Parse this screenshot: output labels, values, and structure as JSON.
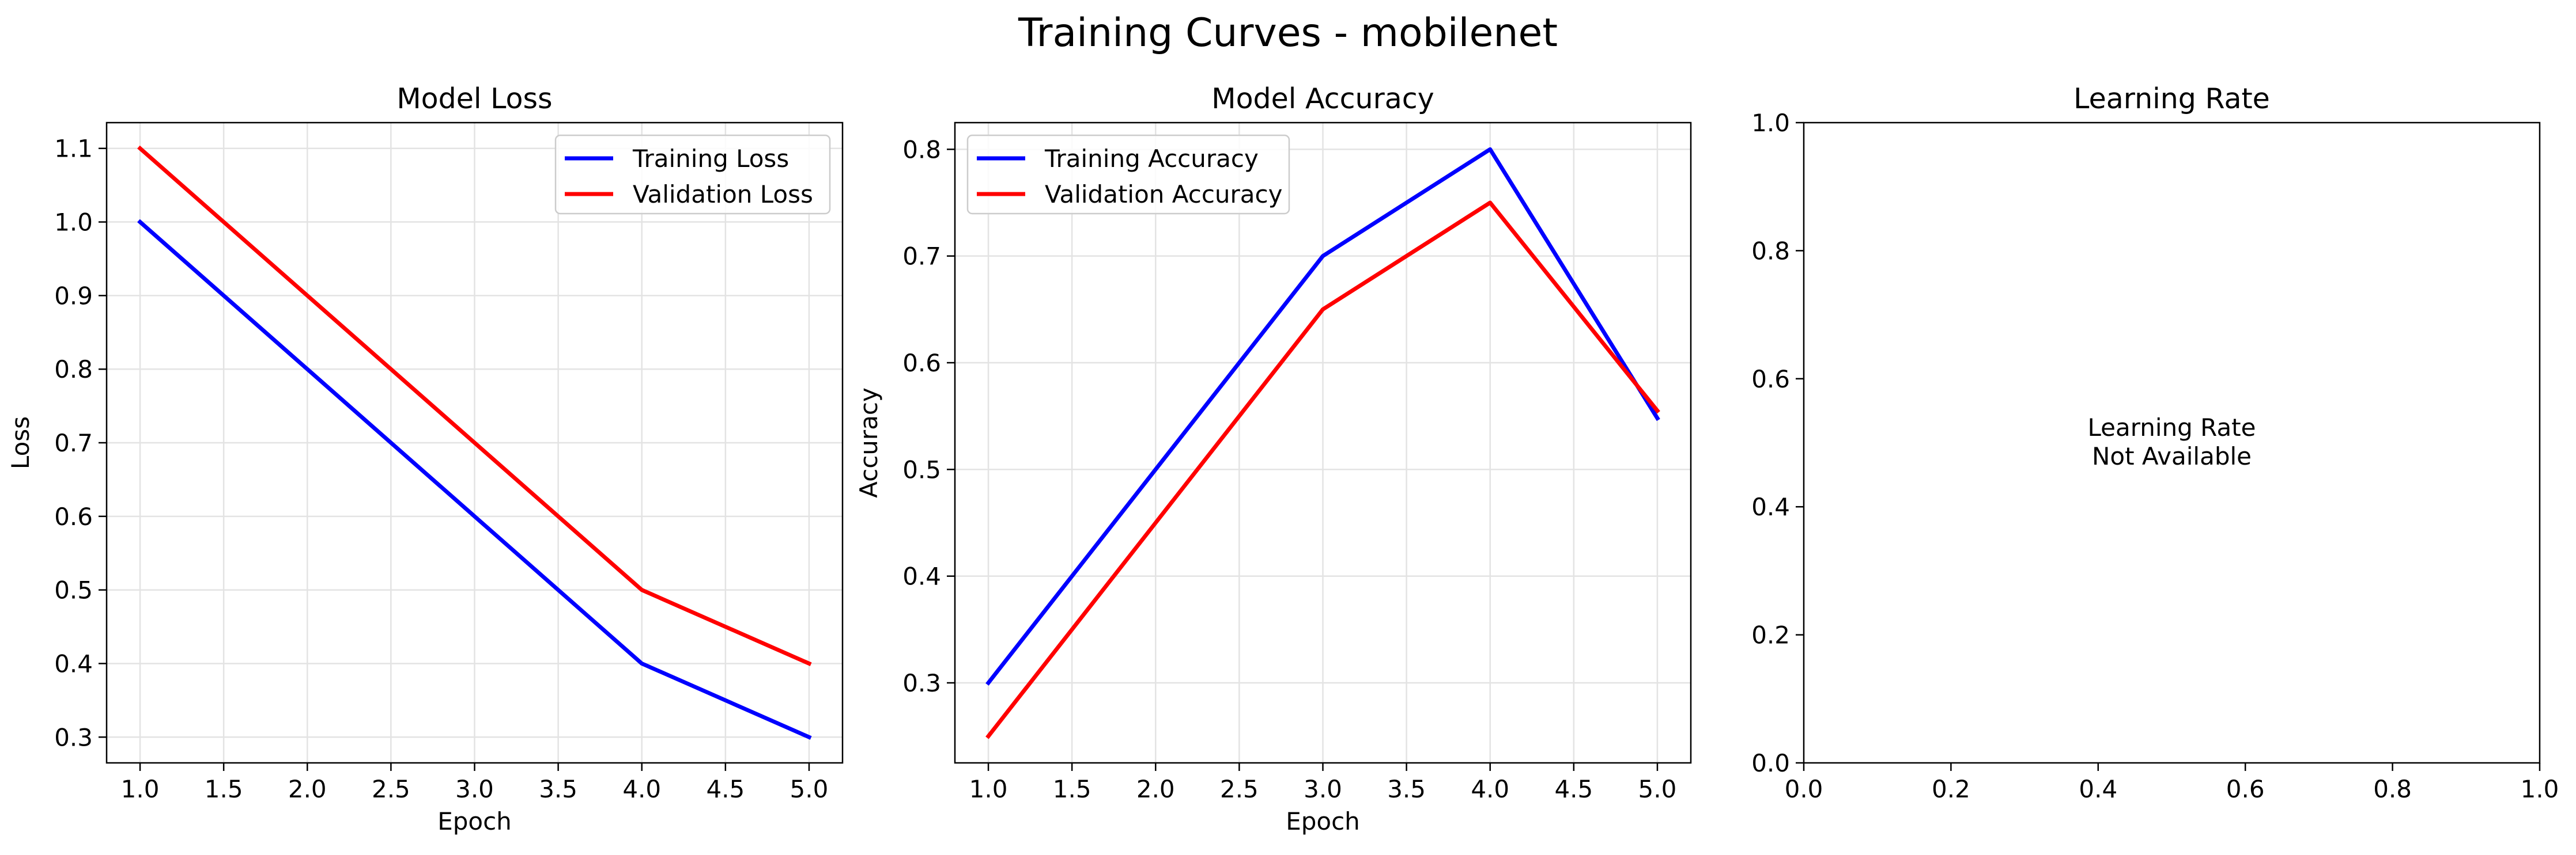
{
  "figure_title": "Training Curves - mobilenet",
  "colors": {
    "training": "#0000ff",
    "validation": "#ff0000",
    "grid": "#e3e3e3"
  },
  "chart_data": [
    {
      "type": "line",
      "title": "Model Loss",
      "xlabel": "Epoch",
      "ylabel": "Loss",
      "xlim": [
        0.8,
        5.2
      ],
      "ylim": [
        0.265,
        1.135
      ],
      "xticks": [
        1.0,
        1.5,
        2.0,
        2.5,
        3.0,
        3.5,
        4.0,
        4.5,
        5.0
      ],
      "yticks": [
        0.3,
        0.4,
        0.5,
        0.6,
        0.7,
        0.8,
        0.9,
        1.0,
        1.1
      ],
      "x": [
        1,
        2,
        3,
        4,
        5
      ],
      "series": [
        {
          "name": "Training Loss",
          "values": [
            1.0,
            0.8,
            0.6,
            0.4,
            0.3
          ]
        },
        {
          "name": "Validation Loss",
          "values": [
            1.1,
            0.9,
            0.7,
            0.5,
            0.4
          ]
        }
      ],
      "legend_loc": "upper right",
      "grid": true
    },
    {
      "type": "line",
      "title": "Model Accuracy",
      "xlabel": "Epoch",
      "ylabel": "Accuracy",
      "xlim": [
        0.8,
        5.2
      ],
      "ylim": [
        0.225,
        0.825
      ],
      "xticks": [
        1.0,
        1.5,
        2.0,
        2.5,
        3.0,
        3.5,
        4.0,
        4.5,
        5.0
      ],
      "yticks": [
        0.3,
        0.4,
        0.5,
        0.6,
        0.7,
        0.8
      ],
      "x": [
        1,
        2,
        3,
        4,
        5
      ],
      "series": [
        {
          "name": "Training Accuracy",
          "values": [
            0.3,
            0.5,
            0.7,
            0.8,
            0.548
          ]
        },
        {
          "name": "Validation Accuracy",
          "values": [
            0.25,
            0.45,
            0.65,
            0.75,
            0.555
          ]
        }
      ],
      "legend_loc": "upper left",
      "grid": true
    },
    {
      "type": "line",
      "title": "Learning Rate",
      "xlabel": "",
      "ylabel": "",
      "xlim": [
        0.0,
        1.0
      ],
      "ylim": [
        0.0,
        1.0
      ],
      "xticks": [
        0.0,
        0.2,
        0.4,
        0.6,
        0.8,
        1.0
      ],
      "yticks": [
        0.0,
        0.2,
        0.4,
        0.6,
        0.8,
        1.0
      ],
      "series": [],
      "annotation": [
        "Learning Rate",
        "Not Available"
      ],
      "grid": false
    }
  ]
}
